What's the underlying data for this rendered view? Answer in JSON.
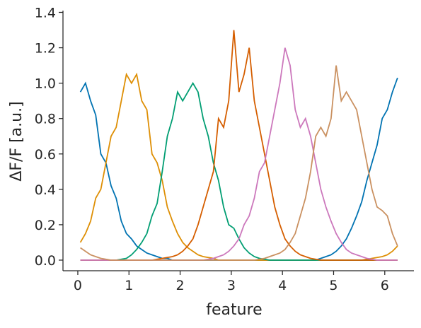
{
  "chart_data": {
    "type": "line",
    "xlabel": "feature",
    "ylabel": "ΔF/F [a.u.]",
    "xlim": [
      -0.29,
      6.57
    ],
    "ylim": [
      -0.06,
      1.41
    ],
    "xticks": [
      0,
      1,
      2,
      3,
      4,
      5,
      6
    ],
    "yticks": [
      {
        "value": 0,
        "label": "0.0"
      },
      0.2,
      0.4,
      0.6,
      0.8,
      {
        "value": 1,
        "label": "1.0"
      },
      1.2,
      1.4
    ],
    "x": [
      0.05,
      0.15,
      0.25,
      0.35,
      0.45,
      0.55,
      0.65,
      0.75,
      0.85,
      0.95,
      1.05,
      1.15,
      1.25,
      1.35,
      1.45,
      1.55,
      1.65,
      1.75,
      1.85,
      1.95,
      2.05,
      2.15,
      2.25,
      2.35,
      2.45,
      2.55,
      2.65,
      2.75,
      2.85,
      2.95,
      3.05,
      3.15,
      3.25,
      3.35,
      3.45,
      3.55,
      3.65,
      3.75,
      3.85,
      3.95,
      4.05,
      4.15,
      4.25,
      4.35,
      4.45,
      4.55,
      4.65,
      4.75,
      4.85,
      4.95,
      5.05,
      5.15,
      5.25,
      5.35,
      5.45,
      5.55,
      5.65,
      5.75,
      5.85,
      5.95,
      6.05,
      6.15,
      6.25
    ],
    "series": [
      {
        "color": "#0173b2",
        "values": [
          0.95,
          1.0,
          0.9,
          0.82,
          0.6,
          0.55,
          0.42,
          0.35,
          0.22,
          0.15,
          0.12,
          0.08,
          0.06,
          0.04,
          0.03,
          0.02,
          0.01,
          0.01,
          0,
          0,
          0,
          0,
          0,
          0,
          0,
          0,
          0,
          0,
          0,
          0,
          0,
          0,
          0,
          0,
          0,
          0,
          0,
          0,
          0,
          0,
          0,
          0,
          0,
          0,
          0,
          0,
          0,
          0.01,
          0.02,
          0.03,
          0.05,
          0.08,
          0.12,
          0.18,
          0.25,
          0.33,
          0.45,
          0.55,
          0.65,
          0.8,
          0.85,
          0.95,
          1.03
        ]
      },
      {
        "color": "#de8f05",
        "values": [
          0.1,
          0.15,
          0.22,
          0.35,
          0.4,
          0.55,
          0.7,
          0.75,
          0.9,
          1.05,
          1.0,
          1.05,
          0.9,
          0.85,
          0.6,
          0.55,
          0.45,
          0.3,
          0.22,
          0.15,
          0.1,
          0.07,
          0.05,
          0.03,
          0.02,
          0.015,
          0.01,
          0,
          0,
          0,
          0,
          0,
          0,
          0,
          0,
          0,
          0,
          0,
          0,
          0,
          0,
          0,
          0,
          0,
          0,
          0,
          0,
          0,
          0,
          0,
          0,
          0,
          0,
          0,
          0,
          0,
          0.005,
          0.01,
          0.015,
          0.02,
          0.03,
          0.05,
          0.08
        ]
      },
      {
        "color": "#029e73",
        "values": [
          0,
          0,
          0,
          0,
          0,
          0,
          0,
          0,
          0.005,
          0.01,
          0.03,
          0.06,
          0.1,
          0.15,
          0.25,
          0.32,
          0.5,
          0.7,
          0.8,
          0.95,
          0.9,
          0.95,
          1.0,
          0.95,
          0.8,
          0.7,
          0.55,
          0.45,
          0.3,
          0.2,
          0.18,
          0.12,
          0.07,
          0.04,
          0.02,
          0.01,
          0.005,
          0,
          0,
          0,
          0,
          0,
          0,
          0,
          0,
          0,
          0,
          0,
          0,
          0,
          0,
          0,
          0,
          0,
          0,
          0,
          0,
          0,
          0,
          0,
          0,
          0,
          0
        ]
      },
      {
        "color": "#d55e00",
        "values": [
          0,
          0,
          0,
          0,
          0,
          0,
          0,
          0,
          0,
          0,
          0,
          0,
          0,
          0,
          0,
          0.005,
          0.01,
          0.015,
          0.02,
          0.03,
          0.05,
          0.08,
          0.12,
          0.2,
          0.3,
          0.4,
          0.5,
          0.8,
          0.75,
          0.9,
          1.3,
          0.95,
          1.05,
          1.2,
          0.9,
          0.75,
          0.6,
          0.45,
          0.3,
          0.2,
          0.12,
          0.08,
          0.05,
          0.03,
          0.02,
          0.01,
          0.005,
          0,
          0,
          0,
          0,
          0,
          0,
          0,
          0,
          0,
          0,
          0,
          0,
          0,
          0,
          0,
          0
        ]
      },
      {
        "color": "#cc78bc",
        "values": [
          0,
          0,
          0,
          0,
          0,
          0,
          0,
          0,
          0,
          0,
          0,
          0,
          0,
          0,
          0,
          0,
          0,
          0,
          0,
          0,
          0,
          0,
          0,
          0,
          0,
          0.005,
          0.01,
          0.02,
          0.03,
          0.05,
          0.08,
          0.12,
          0.2,
          0.25,
          0.35,
          0.5,
          0.55,
          0.7,
          0.85,
          1.0,
          1.2,
          1.1,
          0.85,
          0.75,
          0.8,
          0.7,
          0.55,
          0.4,
          0.3,
          0.22,
          0.15,
          0.1,
          0.06,
          0.04,
          0.03,
          0.02,
          0.01,
          0.005,
          0,
          0,
          0,
          0,
          0
        ]
      },
      {
        "color": "#ca9161",
        "values": [
          0.07,
          0.05,
          0.03,
          0.02,
          0.01,
          0.005,
          0,
          0,
          0,
          0,
          0,
          0,
          0,
          0,
          0,
          0,
          0,
          0,
          0,
          0,
          0,
          0,
          0,
          0,
          0,
          0,
          0,
          0,
          0,
          0,
          0,
          0,
          0,
          0,
          0,
          0.005,
          0.01,
          0.02,
          0.03,
          0.04,
          0.06,
          0.1,
          0.15,
          0.25,
          0.35,
          0.5,
          0.7,
          0.75,
          0.7,
          0.8,
          1.1,
          0.9,
          0.95,
          0.9,
          0.85,
          0.7,
          0.55,
          0.4,
          0.3,
          0.28,
          0.25,
          0.15,
          0.08
        ]
      }
    ]
  }
}
